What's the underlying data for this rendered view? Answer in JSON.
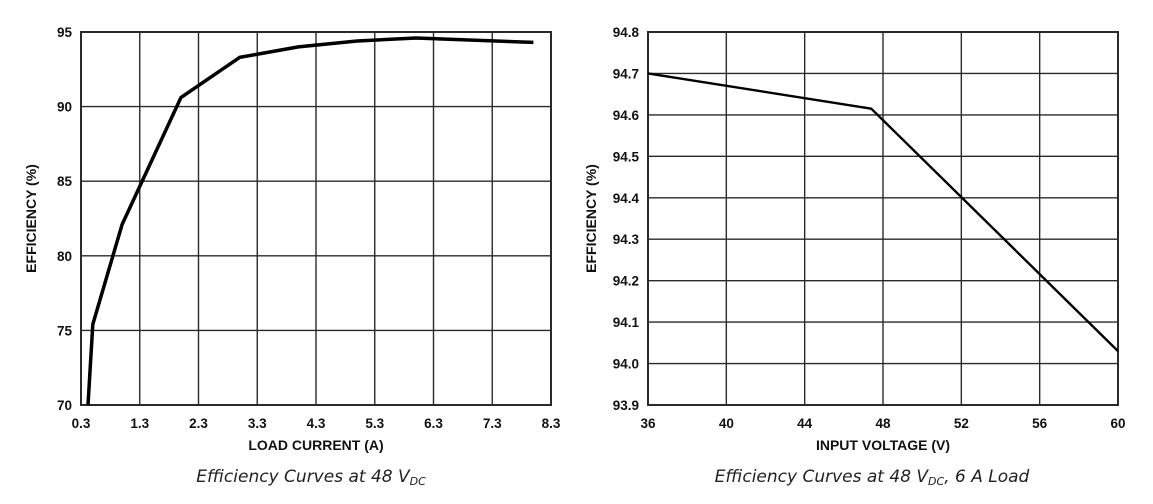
{
  "chart_data": [
    {
      "type": "line",
      "title": "",
      "caption": "Efficiency Curves at 48 V",
      "caption_sub": "DC",
      "caption_tail": "",
      "xlabel": "LOAD CURRENT (A)",
      "ylabel": "EFFICIENCY (%)",
      "xlim": [
        0.3,
        8.3
      ],
      "ylim": [
        70,
        95
      ],
      "xticks": [
        0.3,
        1.3,
        2.3,
        3.3,
        4.3,
        5.3,
        6.3,
        7.3,
        8.3
      ],
      "xtick_labels": [
        "0.3",
        "1.3",
        "2.3",
        "3.3",
        "4.3",
        "5.3",
        "6.3",
        "7.3",
        "8.3"
      ],
      "yticks": [
        70,
        75,
        80,
        85,
        90,
        95
      ],
      "ytick_labels": [
        "70",
        "75",
        "80",
        "85",
        "90",
        "95"
      ],
      "grid": true,
      "legend": "none",
      "series": [
        {
          "name": "Efficiency",
          "x": [
            0.42,
            0.5,
            1.0,
            2.0,
            3.0,
            4.0,
            5.0,
            6.0,
            8.0
          ],
          "y": [
            70.0,
            75.4,
            82.1,
            90.6,
            93.3,
            94.0,
            94.4,
            94.6,
            94.3
          ]
        }
      ]
    },
    {
      "type": "line",
      "title": "",
      "caption": "Efficiency Curves at 48 V",
      "caption_sub": "DC",
      "caption_tail": ", 6 A Load",
      "xlabel": "INPUT VOLTAGE (V)",
      "ylabel": "EFFICIENCY (%)",
      "xlim": [
        36,
        60
      ],
      "ylim": [
        93.9,
        94.8
      ],
      "xticks": [
        36,
        40,
        44,
        48,
        52,
        56,
        60
      ],
      "xtick_labels": [
        "36",
        "40",
        "44",
        "48",
        "52",
        "56",
        "60"
      ],
      "yticks": [
        93.9,
        94.0,
        94.1,
        94.2,
        94.3,
        94.4,
        94.5,
        94.6,
        94.7,
        94.8
      ],
      "ytick_labels": [
        "93.9",
        "94.0",
        "94.1",
        "94.2",
        "94.3",
        "94.4",
        "94.5",
        "94.6",
        "94.7",
        "94.8"
      ],
      "grid": true,
      "legend": "none",
      "series": [
        {
          "name": "Efficiency",
          "x": [
            36,
            47.4,
            60
          ],
          "y": [
            94.7,
            94.615,
            94.03
          ]
        }
      ]
    }
  ],
  "colors": {
    "line": "#000000",
    "grid": "#2a2a2a",
    "text": "#111111"
  }
}
